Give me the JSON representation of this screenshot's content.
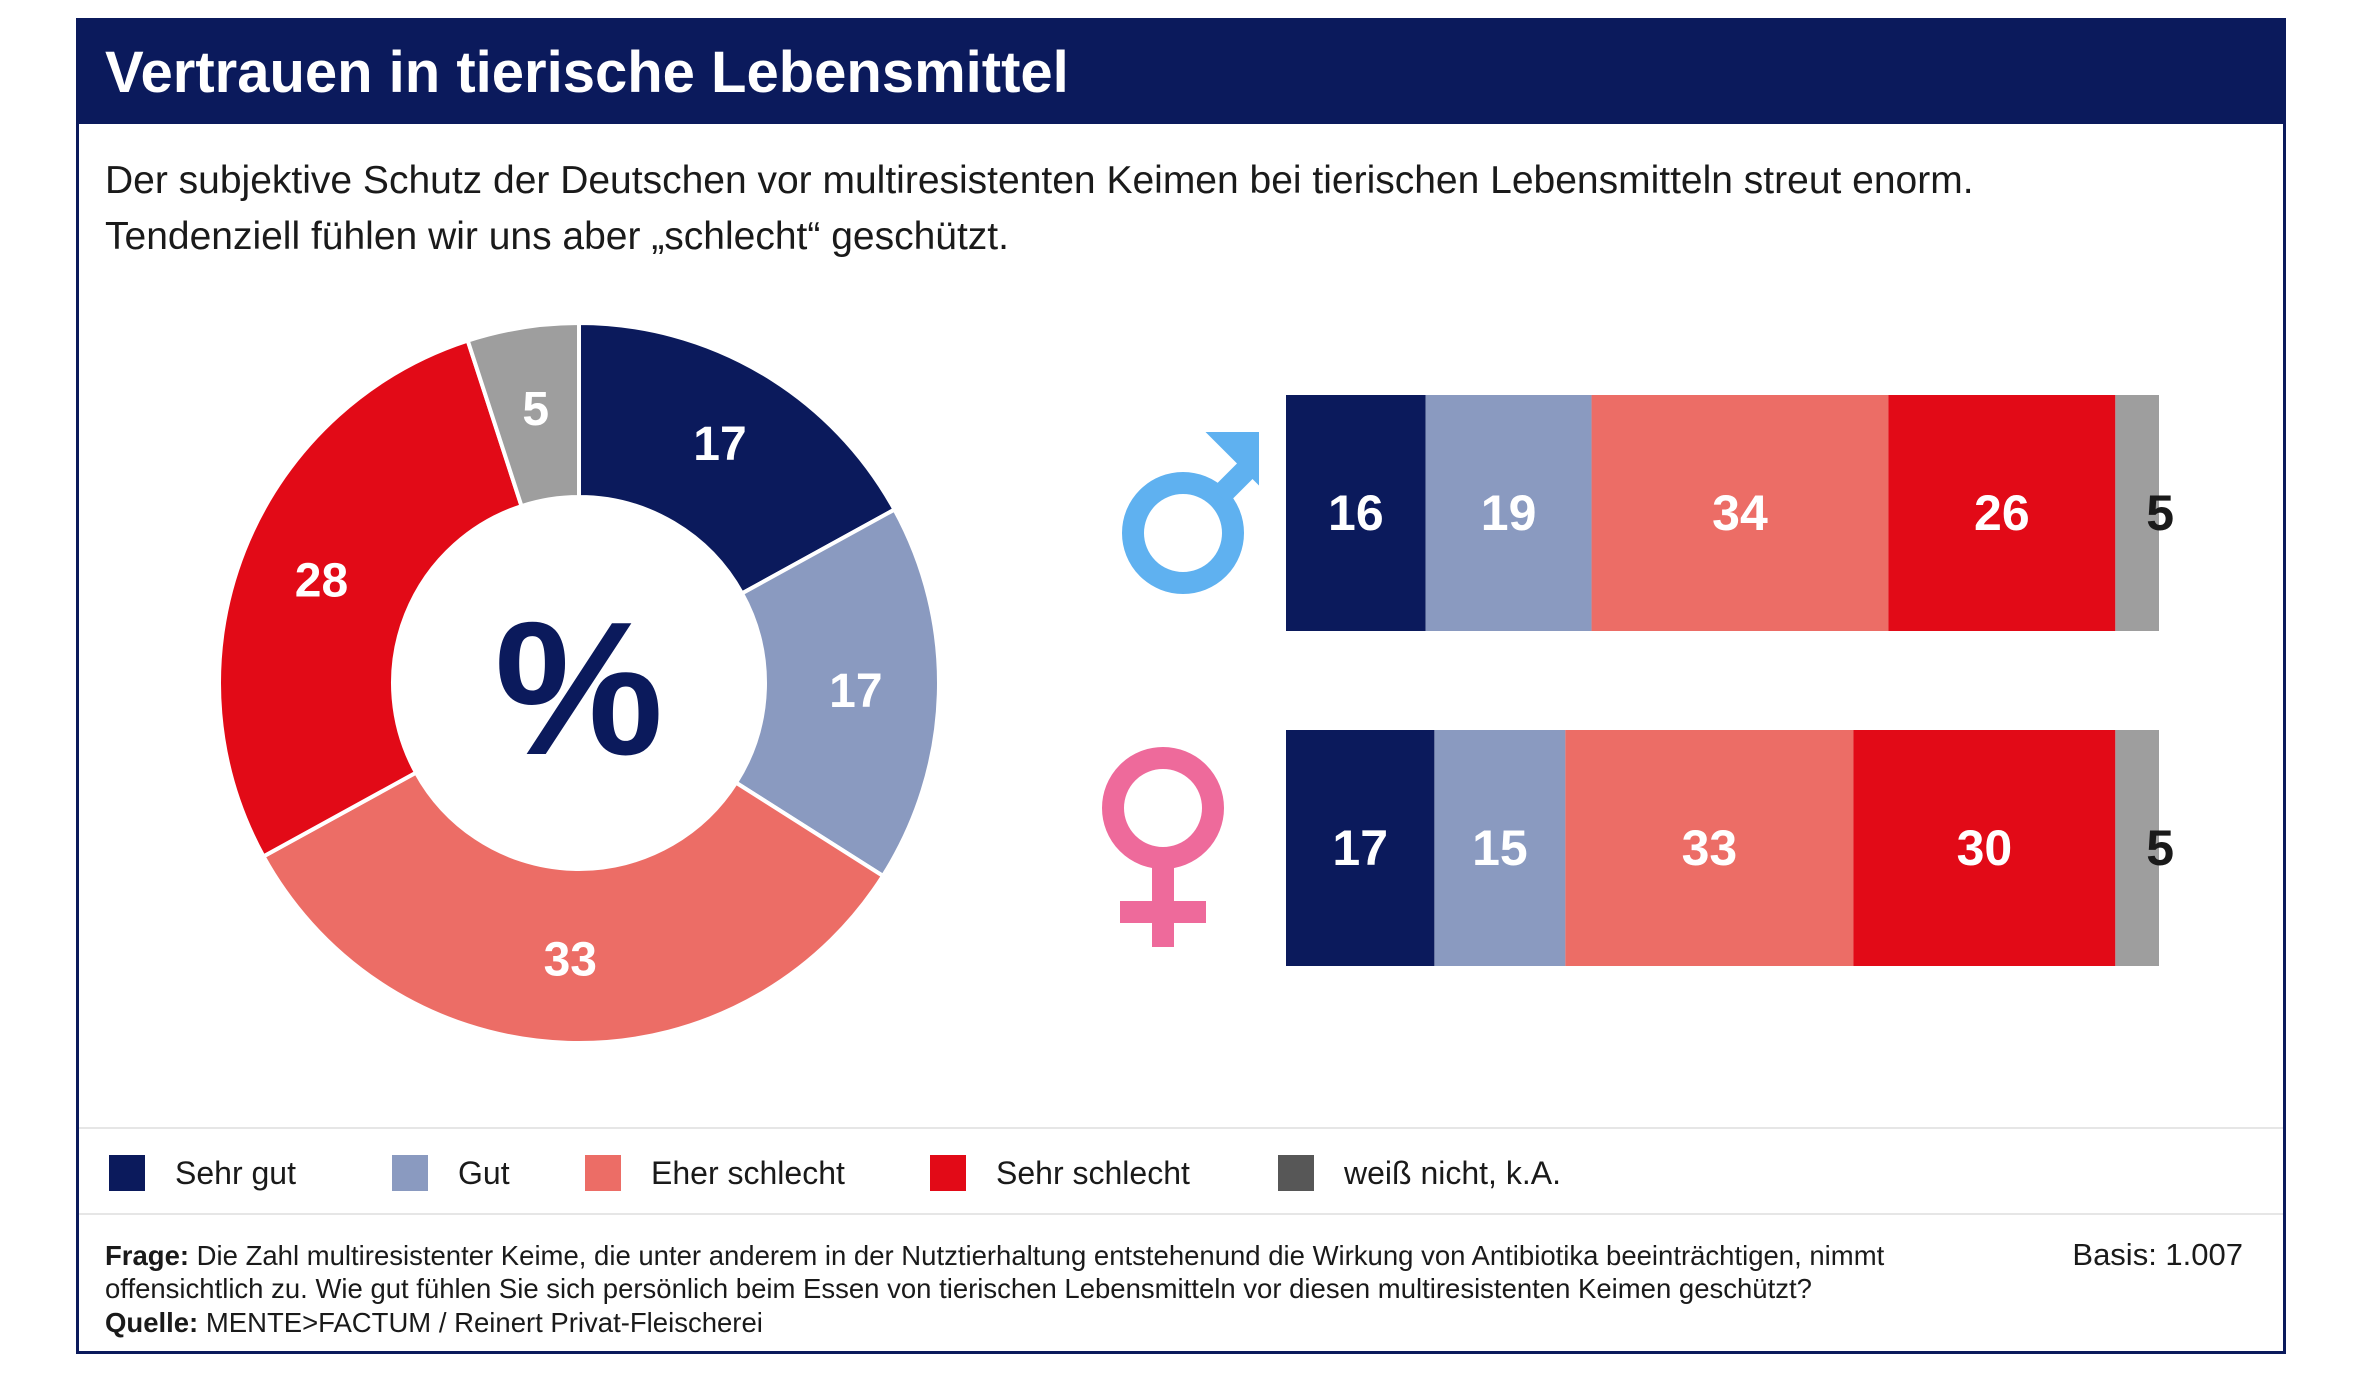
{
  "header": {
    "title": "Vertrauen in tierische Lebensmittel",
    "subtitle_line1": "Der subjektive Schutz der Deutschen vor multiresistenten Keimen bei tierischen Lebensmitteln streut enorm.",
    "subtitle_line2": "Tendenziell fühlen wir uns aber „schlecht“ geschützt."
  },
  "colors": {
    "sehr_gut": "#0b1a5c",
    "gut": "#8a9ac0",
    "eher_schlecht": "#ec6d66",
    "sehr_schlecht": "#e20a17",
    "weiss_nicht": "#9e9e9e",
    "legend_weiss_nicht": "#575757",
    "male_symbol": "#5fb1f0",
    "female_symbol": "#ee6a9b"
  },
  "chart_data": [
    {
      "type": "pie",
      "center_label": "%",
      "categories": [
        "Sehr gut",
        "Gut",
        "Eher schlecht",
        "Sehr schlecht",
        "weiß nicht, k.A."
      ],
      "values": [
        17,
        17,
        33,
        28,
        5
      ],
      "labels": [
        "17",
        "17",
        "33",
        "28",
        "5"
      ]
    },
    {
      "type": "bar",
      "stacked": true,
      "orientation": "horizontal",
      "categories": [
        "Sehr gut",
        "Gut",
        "Eher schlecht",
        "Sehr schlecht",
        "weiß nicht, k.A."
      ],
      "series": [
        {
          "symbol": "male-icon",
          "values": [
            16,
            19,
            34,
            26,
            5
          ],
          "labels": [
            "16",
            "19",
            "34",
            "26",
            "5"
          ]
        },
        {
          "symbol": "female-icon",
          "values": [
            17,
            15,
            33,
            30,
            5
          ],
          "labels": [
            "17",
            "15",
            "33",
            "30",
            "5"
          ]
        }
      ]
    }
  ],
  "legend": [
    {
      "label": "Sehr gut"
    },
    {
      "label": "Gut"
    },
    {
      "label": "Eher schlecht"
    },
    {
      "label": "Sehr schlecht"
    },
    {
      "label": "weiß nicht, k.A."
    }
  ],
  "footer": {
    "frage_label": "Frage:",
    "frage_line1": " Die Zahl multiresistenter Keime, die unter anderem in der Nutztierhaltung entstehenund die Wirkung von Antibiotika beeinträchtigen, nimmt",
    "frage_line2": "offensichtlich zu. Wie gut fühlen Sie sich persönlich beim Essen von tierischen Lebensmitteln vor diesen multiresistenten Keimen geschützt?",
    "quelle_label": "Quelle:",
    "quelle_text": " MENTE>FACTUM / Reinert Privat-Fleischerei",
    "basis": "Basis: 1.007"
  }
}
